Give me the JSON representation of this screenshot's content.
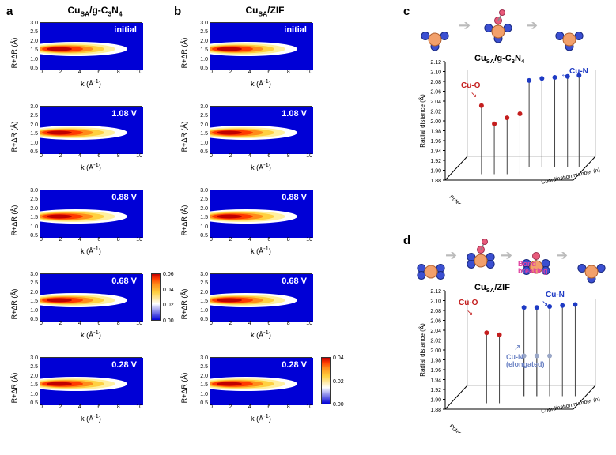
{
  "labels": {
    "a": "a",
    "b": "b",
    "c": "c",
    "d": "d"
  },
  "col_a_title_html": "Cu<sub>SA</sub>/g-C<sub>3</sub>N<sub>4</sub>",
  "col_b_title_html": "Cu<sub>SA</sub>/ZIF",
  "heatmap": {
    "ylabel_html": "R+ΔR (Å)",
    "xlabel_html": "k (Å<sup>-1</sup>)",
    "yticks": [
      "3.0",
      "2.5",
      "2.0",
      "1.5",
      "1.0",
      "0.5"
    ],
    "xticks": [
      "0",
      "2",
      "4",
      "6",
      "8",
      "10"
    ],
    "bg_color": "#0000d6",
    "band_colors": [
      "#ffffff",
      "#fff0a0",
      "#ffd040",
      "#ff8c1a",
      "#ff3a00",
      "#c00000"
    ],
    "tags_a": [
      "initial",
      "1.08 V",
      "0.88 V",
      "0.68 V",
      "0.28 V"
    ],
    "tags_b": [
      "initial",
      "1.08 V",
      "0.88 V",
      "0.68 V",
      "0.28 V"
    ],
    "colorbar_a_max": "0.06",
    "colorbar_a_mid": "0.04",
    "colorbar_a_lo": "0.02",
    "colorbar_a_min": "0.00",
    "colorbar_b_max": "0.04",
    "colorbar_b_mid": "0.02",
    "colorbar_b_min": "0.00"
  },
  "c3d": {
    "title_html": "Cu<sub>SA</sub>/g-C<sub>3</sub>N<sub>4</sub>",
    "zlabel": "Radial distance (Å)",
    "ylabel": "Coordination number (n)",
    "xlabel": "Potential (V vs RHE)",
    "zticks": [
      "1.88",
      "1.90",
      "1.92",
      "1.94",
      "1.96",
      "1.98",
      "2.00",
      "2.02",
      "2.04",
      "2.06",
      "2.08",
      "2.10",
      "2.12"
    ],
    "cu_o_label": "Cu-O",
    "cu_n_label": "Cu-N",
    "cu_o_color": "#c41e1e",
    "cu_n_color": "#1e3ac4",
    "cu_o_pts": [
      [
        0.24,
        0.32
      ],
      [
        0.34,
        0.5
      ],
      [
        0.44,
        0.44
      ],
      [
        0.54,
        0.4
      ]
    ],
    "cu_n_pts": [
      [
        0.56,
        0.14
      ],
      [
        0.66,
        0.12
      ],
      [
        0.76,
        0.11
      ],
      [
        0.86,
        0.1
      ],
      [
        0.95,
        0.09
      ]
    ]
  },
  "d3d": {
    "title_html": "Cu<sub>SA</sub>/ZIF",
    "bond_break": "Bond\nbreaking",
    "cu_o_label": "Cu-O",
    "cu_n_label": "Cu-N",
    "cu_n_elong": "Cu-N\n(elongated)",
    "cu_o_color": "#c41e1e",
    "cu_n_color": "#1e3ac4",
    "cu_ne_color": "#9aa7c7",
    "cu_o_pts": [
      [
        0.28,
        0.3
      ],
      [
        0.38,
        0.32
      ]
    ],
    "cu_n_pts": [
      [
        0.52,
        0.12
      ],
      [
        0.62,
        0.12
      ],
      [
        0.72,
        0.11
      ],
      [
        0.82,
        0.1
      ],
      [
        0.92,
        0.09
      ]
    ],
    "cu_ne_pts": [
      [
        0.52,
        0.6
      ],
      [
        0.62,
        0.6
      ],
      [
        0.72,
        0.6
      ]
    ]
  },
  "colors": {
    "cu_atom": "#f2a06b",
    "n_atom": "#3b4fd1",
    "o_atom": "#e85a7a",
    "arrow_gray": "#bfbfbf"
  }
}
